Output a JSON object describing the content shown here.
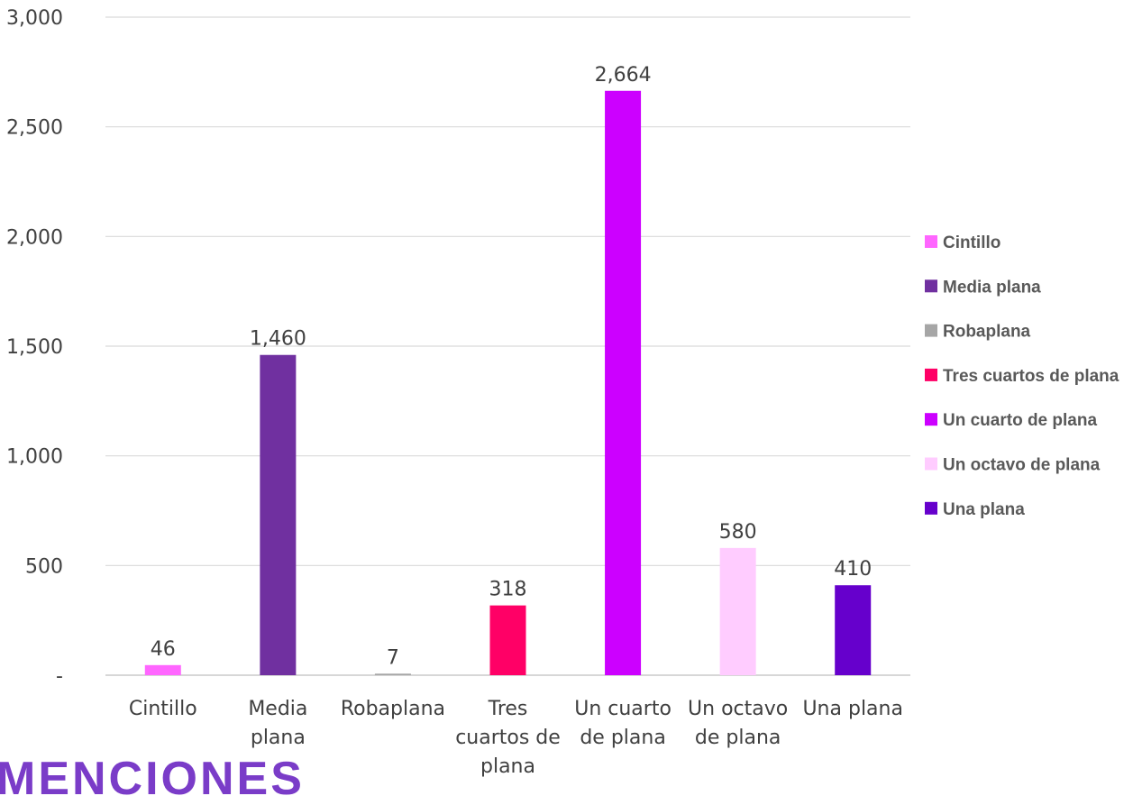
{
  "chart_data": {
    "type": "bar",
    "categories": [
      "Cintillo",
      "Media plana",
      "Robaplana",
      "Tres cuartos de plana",
      "Un cuarto de plana",
      "Un octavo de plana",
      "Una plana"
    ],
    "category_tick_lines": [
      [
        "Cintillo"
      ],
      [
        "Media",
        "plana"
      ],
      [
        "Robaplana"
      ],
      [
        "Tres",
        "cuartos de",
        "plana"
      ],
      [
        "Un cuarto",
        "de plana"
      ],
      [
        "Un octavo",
        "de plana"
      ],
      [
        "Una plana"
      ]
    ],
    "values": [
      46,
      1460,
      7,
      318,
      2664,
      580,
      410
    ],
    "data_labels": [
      "46",
      "1,460",
      "7",
      "318",
      "2,664",
      "580",
      "410"
    ],
    "colors": [
      "#ff66ff",
      "#7030a0",
      "#a6a6a6",
      "#ff0066",
      "#cc00ff",
      "#ffccff",
      "#6600cc"
    ],
    "ylim": [
      0,
      3000
    ],
    "y_ticks": [
      0,
      500,
      1000,
      1500,
      2000,
      2500,
      3000
    ],
    "y_tick_labels": [
      "-",
      "500",
      "1,000",
      "1,500",
      "2,000",
      "2,500",
      "3,000"
    ],
    "grid": true,
    "legend": {
      "position": "right",
      "entries": [
        "Cintillo",
        "Media plana",
        "Robaplana",
        "Tres cuartos de plana",
        "Un cuarto de plana",
        "Un octavo de plana",
        "Una plana"
      ]
    },
    "title": "",
    "xlabel": "",
    "ylabel": ""
  },
  "footer": {
    "text": "MENCIONES"
  }
}
